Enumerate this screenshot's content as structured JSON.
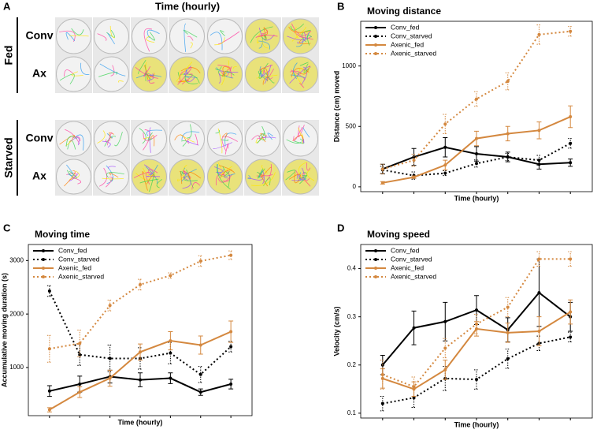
{
  "panel_a": {
    "panel": "A",
    "title": "Time (hourly)",
    "groups": [
      {
        "label": "Fed",
        "rows": [
          "Conv",
          "Ax"
        ]
      },
      {
        "label": "Starved",
        "rows": [
          "Conv",
          "Ax"
        ]
      }
    ]
  },
  "chart_data": [
    {
      "panel": "B",
      "type": "line",
      "title": "Moving distance",
      "xlabel": "Time (hourly)",
      "ylabel": "Distance (cm) moved",
      "categories": [
        null,
        null,
        null,
        null,
        null,
        null,
        null
      ],
      "ylim": [
        -40,
        1370
      ],
      "yticks": [
        0,
        500,
        1000
      ],
      "legend": "upper left",
      "series": [
        {
          "name": "Conv_fed",
          "color": "#000000",
          "line_style": "solid",
          "values": [
            147,
            247,
            327,
            273,
            247,
            187,
            200
          ],
          "errors": [
            40,
            70,
            80,
            60,
            40,
            40,
            30
          ]
        },
        {
          "name": "Conv_starved",
          "color": "#000000",
          "line_style": "dotted",
          "values": [
            140,
            93,
            113,
            193,
            247,
            220,
            360
          ],
          "errors": [
            30,
            30,
            20,
            30,
            30,
            40,
            40
          ]
        },
        {
          "name": "Axenic_fed",
          "color": "#d4883f",
          "line_style": "solid",
          "values": [
            33,
            80,
            180,
            400,
            440,
            467,
            580
          ],
          "errors": [
            10,
            10,
            40,
            60,
            60,
            70,
            90
          ]
        },
        {
          "name": "Axenic_starved",
          "color": "#d4883f",
          "line_style": "dotted",
          "values": [
            147,
            220,
            520,
            727,
            873,
            1260,
            1287
          ],
          "errors": [
            40,
            50,
            80,
            60,
            70,
            80,
            40
          ]
        }
      ]
    },
    {
      "panel": "C",
      "type": "line",
      "title": "Moving time",
      "xlabel": "Time (hourly)",
      "ylabel": "Accumulative moving duration (s)",
      "categories": [
        null,
        null,
        null,
        null,
        null,
        null,
        null
      ],
      "ylim": [
        100,
        3300
      ],
      "yticks": [
        1000,
        2000,
        3000
      ],
      "legend": "upper left",
      "series": [
        {
          "name": "Conv_fed",
          "color": "#000000",
          "line_style": "solid",
          "values": [
            560,
            690,
            830,
            770,
            800,
            540,
            690
          ],
          "errors": [
            100,
            150,
            120,
            130,
            100,
            60,
            90
          ]
        },
        {
          "name": "Conv_starved",
          "color": "#000000",
          "line_style": "dotted",
          "values": [
            2430,
            1240,
            1170,
            1170,
            1270,
            870,
            1390
          ],
          "errors": [
            100,
            200,
            250,
            200,
            200,
            150,
            100
          ]
        },
        {
          "name": "Axenic_fed",
          "color": "#d4883f",
          "line_style": "solid",
          "values": [
            210,
            540,
            800,
            1290,
            1500,
            1420,
            1670
          ],
          "errors": [
            40,
            100,
            150,
            150,
            170,
            170,
            200
          ]
        },
        {
          "name": "Axenic_starved",
          "color": "#d4883f",
          "line_style": "dotted",
          "values": [
            1350,
            1450,
            2160,
            2550,
            2720,
            2990,
            3100
          ],
          "errors": [
            250,
            250,
            100,
            100,
            50,
            100,
            80
          ]
        }
      ]
    },
    {
      "panel": "D",
      "type": "line",
      "title": "Moving speed",
      "xlabel": "Time (hourly)",
      "ylabel": "Velocity (cm/s)",
      "categories": [
        null,
        null,
        null,
        null,
        null,
        null,
        null
      ],
      "ylim": [
        0.09,
        0.45
      ],
      "yticks": [
        0.1,
        0.2,
        0.3,
        0.4
      ],
      "legend": "upper left",
      "series": [
        {
          "name": "Conv_fed",
          "color": "#000000",
          "line_style": "solid",
          "values": [
            0.2,
            0.277,
            0.29,
            0.314,
            0.273,
            0.35,
            0.3
          ],
          "errors": [
            0.02,
            0.035,
            0.04,
            0.03,
            0.025,
            0.07,
            0.03
          ]
        },
        {
          "name": "Conv_starved",
          "color": "#000000",
          "line_style": "dotted",
          "values": [
            0.12,
            0.132,
            0.172,
            0.17,
            0.213,
            0.245,
            0.258
          ],
          "errors": [
            0.015,
            0.02,
            0.025,
            0.02,
            0.02,
            0.015,
            0.01
          ]
        },
        {
          "name": "Axenic_fed",
          "color": "#d4883f",
          "line_style": "solid",
          "values": [
            0.172,
            0.15,
            0.19,
            0.275,
            0.267,
            0.27,
            0.31
          ],
          "errors": [
            0.02,
            0.015,
            0.02,
            0.015,
            0.02,
            0.03,
            0.025
          ]
        },
        {
          "name": "Axenic_starved",
          "color": "#d4883f",
          "line_style": "dotted",
          "values": [
            0.18,
            0.155,
            0.235,
            0.285,
            0.32,
            0.42,
            0.42
          ],
          "errors": [
            0.03,
            0.02,
            0.02,
            0.02,
            0.02,
            0.015,
            0.015
          ]
        }
      ]
    }
  ]
}
